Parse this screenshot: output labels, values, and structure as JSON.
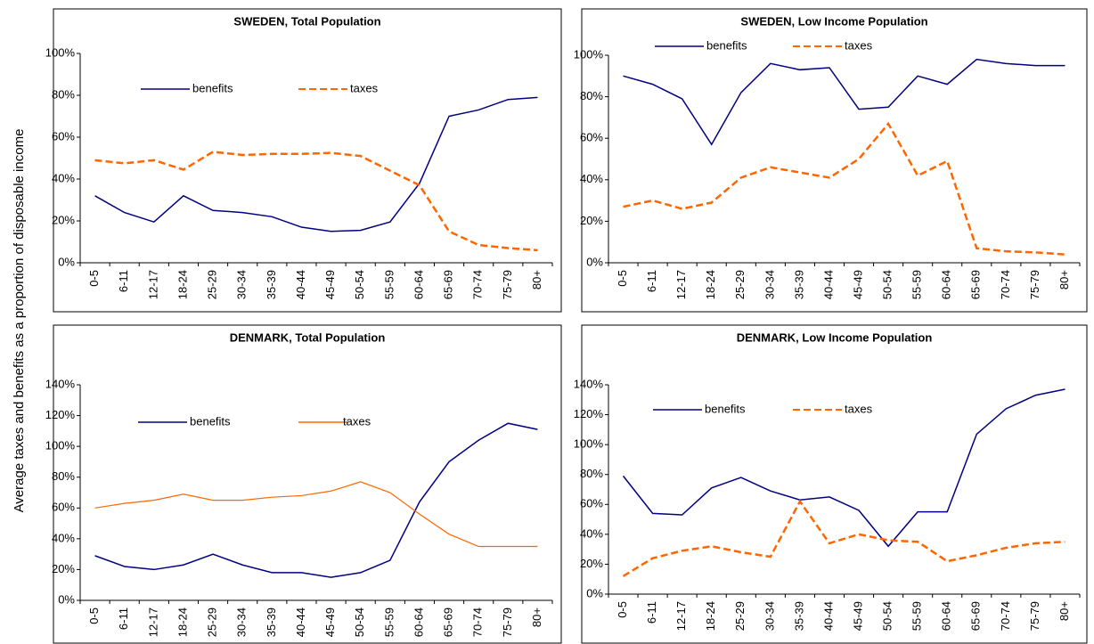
{
  "ylabel": "Average taxes and benefits as a proportion of disposable income",
  "chart_data": [
    {
      "type": "line",
      "title": "SWEDEN, Total Population",
      "categories": [
        "0-5",
        "6-11",
        "12-17",
        "18-24",
        "25-29",
        "30-34",
        "35-39",
        "40-44",
        "45-49",
        "50-54",
        "55-59",
        "60-64",
        "65-69",
        "70-74",
        "75-79",
        "80+"
      ],
      "series": [
        {
          "name": "benefits",
          "color": "#000080",
          "dash": false,
          "values": [
            32,
            24,
            19.5,
            32,
            25,
            24,
            22,
            17,
            15,
            15.5,
            19.5,
            38,
            70,
            73,
            78,
            79
          ]
        },
        {
          "name": "taxes",
          "color": "#ff6600",
          "dash": true,
          "values": [
            49,
            47.5,
            49,
            44.5,
            53,
            51.5,
            52,
            52,
            52.5,
            51,
            44,
            37,
            15,
            8.5,
            7,
            6
          ]
        }
      ],
      "ylim": [
        0,
        100
      ],
      "yticks": [
        {
          "value": 0,
          "label": "0%"
        },
        {
          "value": 20,
          "label": "20%"
        },
        {
          "value": 40,
          "label": "40%"
        },
        {
          "value": 60,
          "label": "60%"
        },
        {
          "value": 80,
          "label": "80%"
        },
        {
          "value": 100,
          "label": "100%"
        }
      ]
    },
    {
      "type": "line",
      "title": "SWEDEN, Low Income Population",
      "categories": [
        "0-5",
        "6-11",
        "12-17",
        "18-24",
        "25-29",
        "30-34",
        "35-39",
        "40-44",
        "45-49",
        "50-54",
        "55-59",
        "60-64",
        "65-69",
        "70-74",
        "75-79",
        "80+"
      ],
      "series": [
        {
          "name": "benefits",
          "color": "#000080",
          "dash": false,
          "values": [
            90,
            86,
            79,
            57,
            82,
            96,
            93,
            94,
            74,
            75,
            90,
            86,
            98,
            96,
            95,
            95
          ]
        },
        {
          "name": "taxes",
          "color": "#ff6600",
          "dash": true,
          "values": [
            27,
            30,
            26,
            29,
            41,
            46,
            43.5,
            41,
            50,
            67,
            42,
            49,
            7,
            5.5,
            5,
            4
          ]
        }
      ],
      "ylim": [
        0,
        100
      ],
      "yticks": [
        {
          "value": 0,
          "label": "0%"
        },
        {
          "value": 20,
          "label": "20%"
        },
        {
          "value": 40,
          "label": "40%"
        },
        {
          "value": 60,
          "label": "60%"
        },
        {
          "value": 80,
          "label": "80%"
        },
        {
          "value": 100,
          "label": "100%"
        }
      ]
    },
    {
      "type": "line",
      "title": "DENMARK, Total Population",
      "categories": [
        "0-5",
        "6-11",
        "12-17",
        "18-24",
        "25-29",
        "30-34",
        "35-39",
        "40-44",
        "45-49",
        "50-54",
        "55-59",
        "60-64",
        "65-69",
        "70-74",
        "75-79",
        "80+"
      ],
      "series": [
        {
          "name": "benefits",
          "color": "#000080",
          "dash": false,
          "values": [
            29,
            22,
            20,
            23,
            30,
            23,
            18,
            18,
            15,
            18,
            26,
            64,
            90,
            104,
            115,
            111
          ]
        },
        {
          "name": "taxes",
          "color": "#ff6600",
          "dash": false,
          "values": [
            60,
            63,
            65,
            69,
            65,
            65,
            67,
            68,
            71,
            77,
            70,
            56,
            43,
            35,
            35,
            35
          ]
        }
      ],
      "ylim": [
        0,
        140
      ],
      "yticks": [
        {
          "value": 0,
          "label": "0%"
        },
        {
          "value": 20,
          "label": "20%"
        },
        {
          "value": 40,
          "label": "40%"
        },
        {
          "value": 60,
          "label": "60%"
        },
        {
          "value": 80,
          "label": "80%"
        },
        {
          "value": 100,
          "label": "100%"
        },
        {
          "value": 120,
          "label": "120%"
        },
        {
          "value": 140,
          "label": "140%"
        }
      ]
    },
    {
      "type": "line",
      "title": "DENMARK, Low Income Population",
      "categories": [
        "0-5",
        "6-11",
        "12-17",
        "18-24",
        "25-29",
        "30-34",
        "35-39",
        "40-44",
        "45-49",
        "50-54",
        "55-59",
        "60-64",
        "65-69",
        "70-74",
        "75-79",
        "80+"
      ],
      "series": [
        {
          "name": "benefits",
          "color": "#000080",
          "dash": false,
          "values": [
            79,
            54,
            53,
            71,
            78,
            69,
            63,
            65,
            56,
            32,
            55,
            55,
            107,
            124,
            133,
            137
          ]
        },
        {
          "name": "taxes",
          "color": "#ff6600",
          "dash": true,
          "values": [
            12,
            24,
            29,
            32,
            28,
            25,
            62,
            34,
            40,
            36,
            35,
            22,
            26,
            31,
            34,
            35
          ]
        }
      ],
      "ylim": [
        0,
        140
      ],
      "yticks": [
        {
          "value": 0,
          "label": "0%"
        },
        {
          "value": 20,
          "label": "20%"
        },
        {
          "value": 40,
          "label": "40%"
        },
        {
          "value": 60,
          "label": "60%"
        },
        {
          "value": 80,
          "label": "80%"
        },
        {
          "value": 100,
          "label": "100%"
        },
        {
          "value": 120,
          "label": "120%"
        },
        {
          "value": 140,
          "label": "140%"
        }
      ]
    }
  ]
}
